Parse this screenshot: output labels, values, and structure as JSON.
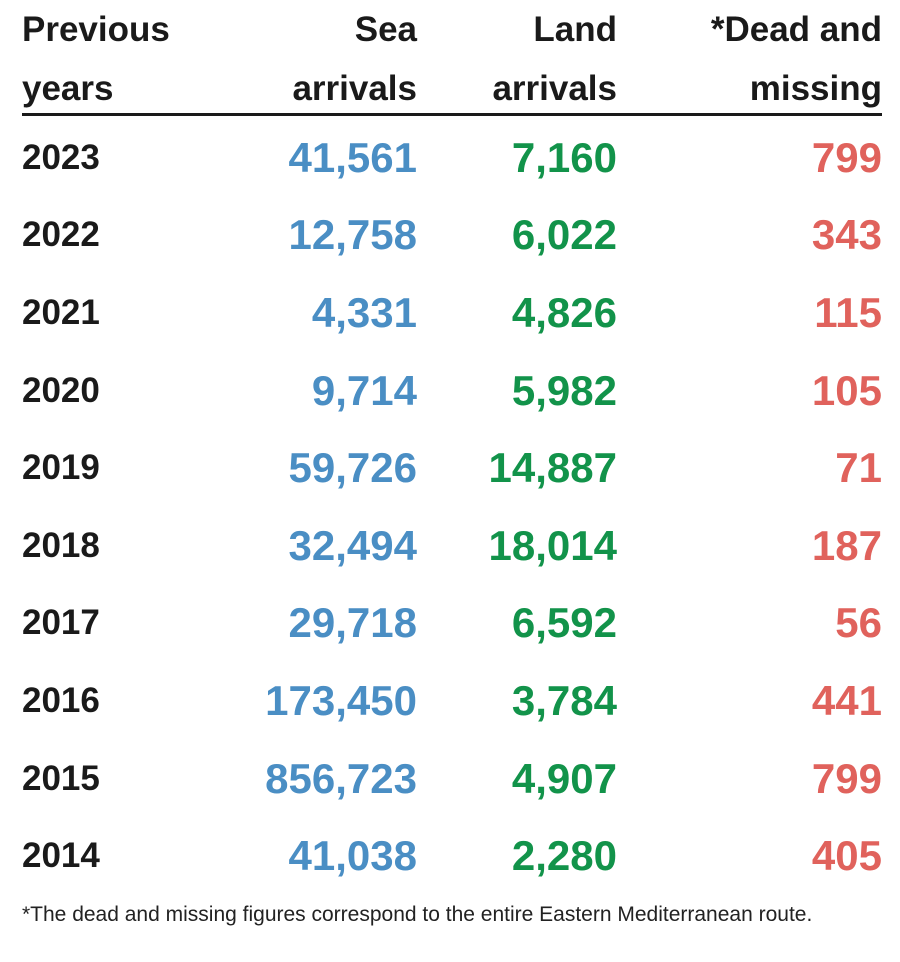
{
  "colors": {
    "header_text": "#1a1a1a",
    "rule": "#1a1a1a",
    "sea": "#4a8ec4",
    "land": "#12934a",
    "dead": "#e0625c"
  },
  "chart_data": {
    "type": "table",
    "columns": [
      "Previous\nyears",
      "Sea\narrivals",
      "Land\narrivals",
      "*Dead and\nmissing"
    ],
    "rows": [
      {
        "year": "2023",
        "sea": "41,561",
        "land": "7,160",
        "dead": "799"
      },
      {
        "year": "2022",
        "sea": "12,758",
        "land": "6,022",
        "dead": "343"
      },
      {
        "year": "2021",
        "sea": "4,331",
        "land": "4,826",
        "dead": "115"
      },
      {
        "year": "2020",
        "sea": "9,714",
        "land": "5,982",
        "dead": "105"
      },
      {
        "year": "2019",
        "sea": "59,726",
        "land": "14,887",
        "dead": "71"
      },
      {
        "year": "2018",
        "sea": "32,494",
        "land": "18,014",
        "dead": "187"
      },
      {
        "year": "2017",
        "sea": "29,718",
        "land": "6,592",
        "dead": "56"
      },
      {
        "year": "2016",
        "sea": "173,450",
        "land": "3,784",
        "dead": "441"
      },
      {
        "year": "2015",
        "sea": "856,723",
        "land": "4,907",
        "dead": "799"
      },
      {
        "year": "2014",
        "sea": "41,038",
        "land": "2,280",
        "dead": "405"
      }
    ],
    "footnote": "*The dead and missing figures correspond to the entire Eastern Mediterranean route."
  }
}
